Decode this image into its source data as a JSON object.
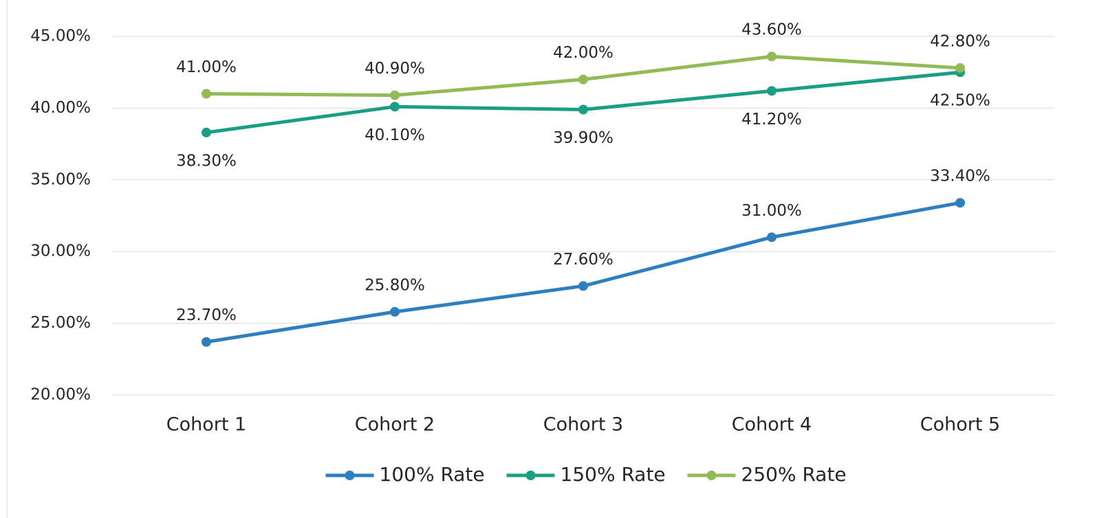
{
  "chart_data": {
    "type": "line",
    "categories": [
      "Cohort 1",
      "Cohort 2",
      "Cohort 3",
      "Cohort 4",
      "Cohort 5"
    ],
    "series": [
      {
        "name": "100% Rate",
        "color": "#2e7fbf",
        "values": [
          23.7,
          25.8,
          27.6,
          31.0,
          33.4
        ],
        "value_labels": [
          "23.70%",
          "25.80%",
          "27.60%",
          "31.00%",
          "33.40%"
        ],
        "label_position": "above"
      },
      {
        "name": "150% Rate",
        "color": "#1a9e85",
        "values": [
          38.3,
          40.1,
          39.9,
          41.2,
          42.5
        ],
        "value_labels": [
          "38.30%",
          "40.10%",
          "39.90%",
          "41.20%",
          "42.50%"
        ],
        "label_position": "below"
      },
      {
        "name": "250% Rate",
        "color": "#93bb55",
        "values": [
          41.0,
          40.9,
          42.0,
          43.6,
          42.8
        ],
        "value_labels": [
          "41.00%",
          "40.90%",
          "42.00%",
          "43.60%",
          "42.80%"
        ],
        "label_position": "above"
      }
    ],
    "ylim": [
      20,
      45
    ],
    "yticks": [
      {
        "value": 20,
        "label": "20.00%"
      },
      {
        "value": 25,
        "label": "25.00%"
      },
      {
        "value": 30,
        "label": "30.00%"
      },
      {
        "value": 35,
        "label": "35.00%"
      },
      {
        "value": 40,
        "label": "40.00%"
      },
      {
        "value": 45,
        "label": "45.00%"
      }
    ],
    "grid": true,
    "legend": "bottom"
  }
}
